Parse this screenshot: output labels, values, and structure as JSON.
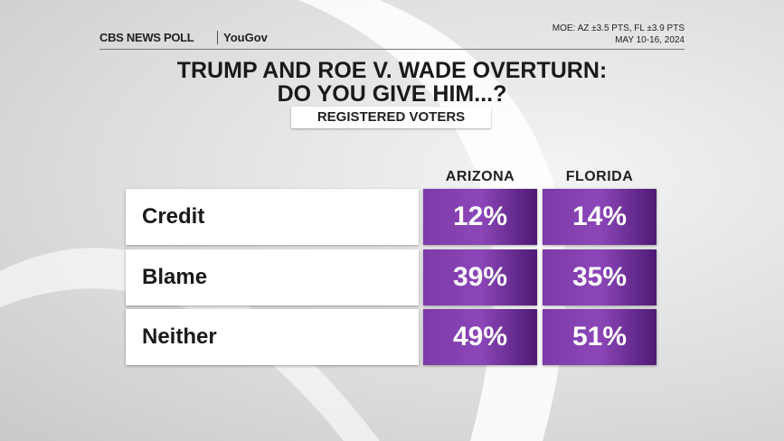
{
  "header": {
    "brand": "CBS NEWS POLL",
    "partner": "YouGov",
    "moe": "MOE: AZ ±3.5 PTS, FL ±3.9 PTS",
    "dates": "MAY 10-16, 2024"
  },
  "title": [
    "TRUMP AND ROE V. WADE OVERTURN:",
    "DO YOU GIVE HIM...?"
  ],
  "subtitle": "REGISTERED VOTERS",
  "table": {
    "columns": [
      "ARIZONA",
      "FLORIDA"
    ],
    "rows": [
      [
        "Credit",
        "12%",
        "14%"
      ],
      [
        "Blame",
        "39%",
        "35%"
      ],
      [
        "Neither",
        "49%",
        "51%"
      ]
    ]
  }
}
